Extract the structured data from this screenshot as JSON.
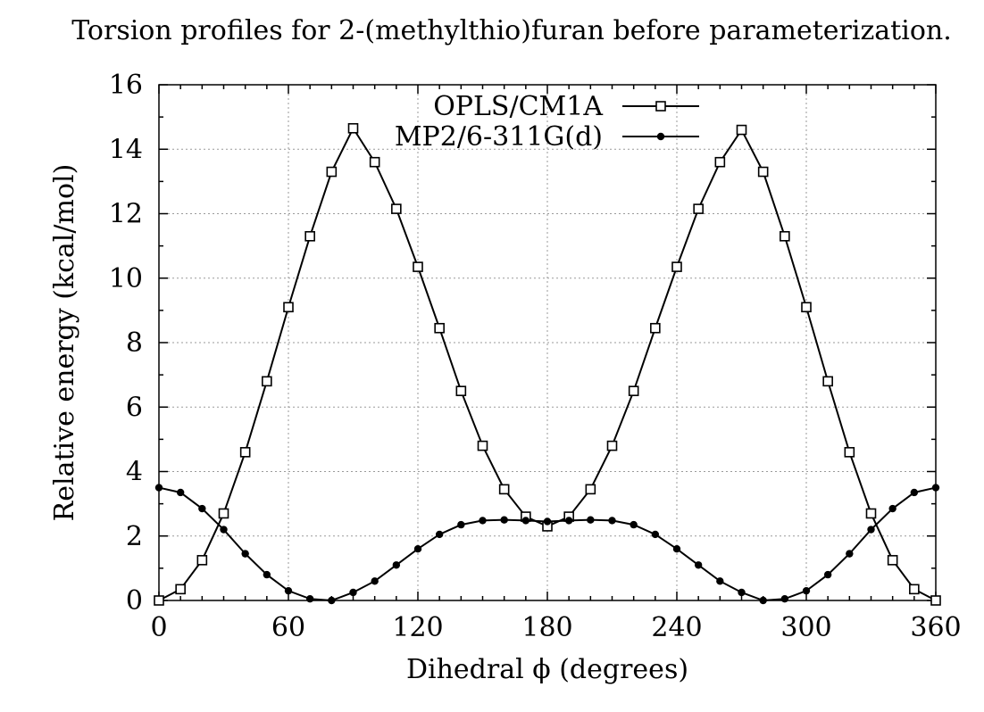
{
  "chart_data": {
    "type": "line",
    "title": "Torsion profiles for 2-(methylthio)furan before parameterization.",
    "xlabel": "Dihedral ϕ (degrees)",
    "ylabel": "Relative energy (kcal/mol)",
    "xlim": [
      0,
      360
    ],
    "ylim": [
      0,
      16
    ],
    "xticks": [
      "0",
      "60",
      "120",
      "180",
      "240",
      "300",
      "360"
    ],
    "yticks": [
      "0",
      "2",
      "4",
      "6",
      "8",
      "10",
      "12",
      "14",
      "16"
    ],
    "grid": true,
    "legend_position": "top-center",
    "x": [
      0,
      10,
      20,
      30,
      40,
      50,
      60,
      70,
      80,
      90,
      100,
      110,
      120,
      130,
      140,
      150,
      160,
      170,
      180,
      190,
      200,
      210,
      220,
      230,
      240,
      250,
      260,
      270,
      280,
      290,
      300,
      310,
      320,
      330,
      340,
      350,
      360
    ],
    "series": [
      {
        "name": "OPLS/CM1A",
        "marker": "open-square",
        "values": [
          0.0,
          0.35,
          1.25,
          2.7,
          4.6,
          6.8,
          9.1,
          11.3,
          13.3,
          14.65,
          13.6,
          12.15,
          10.35,
          8.45,
          6.5,
          4.8,
          3.45,
          2.6,
          2.3,
          2.6,
          3.45,
          4.8,
          6.5,
          8.45,
          10.35,
          12.15,
          13.6,
          14.6,
          13.3,
          11.3,
          9.1,
          6.8,
          4.6,
          2.7,
          1.25,
          0.35,
          0.0
        ]
      },
      {
        "name": "MP2/6-311G(d)",
        "marker": "filled-circle",
        "values": [
          3.5,
          3.35,
          2.85,
          2.2,
          1.45,
          0.8,
          0.3,
          0.05,
          0.0,
          0.25,
          0.6,
          1.1,
          1.6,
          2.05,
          2.35,
          2.48,
          2.5,
          2.48,
          2.45,
          2.48,
          2.5,
          2.48,
          2.35,
          2.05,
          1.6,
          1.1,
          0.6,
          0.25,
          0.0,
          0.05,
          0.3,
          0.8,
          1.45,
          2.2,
          2.85,
          3.35,
          3.5
        ]
      }
    ]
  }
}
